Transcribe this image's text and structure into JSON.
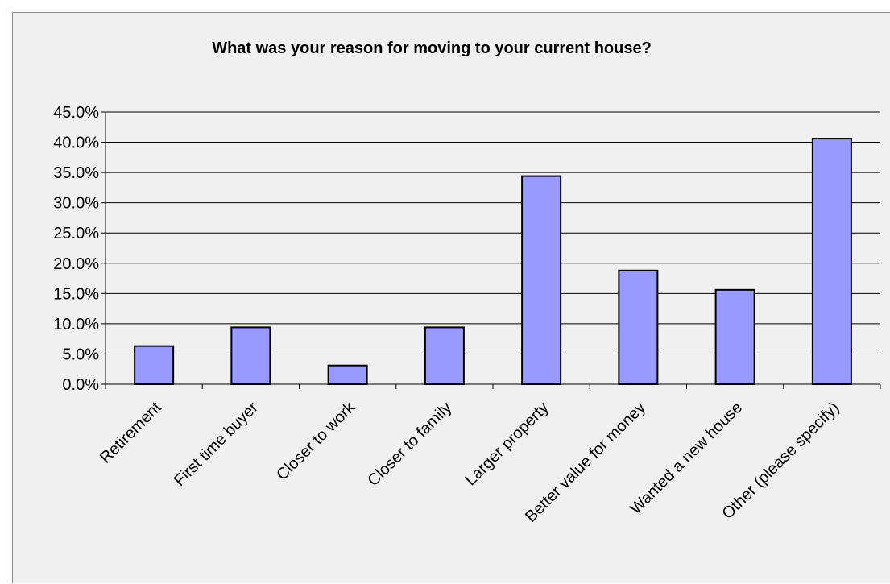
{
  "chart_data": {
    "type": "bar",
    "title": "What was your reason for moving to your current house?",
    "xlabel": "",
    "ylabel": "",
    "categories": [
      "Retirement",
      "First time buyer",
      "Closer to work",
      "Closer to family",
      "Larger property",
      "Better value for money",
      "Wanted a new house",
      "Other (please specify)"
    ],
    "values": [
      6.3,
      9.4,
      3.1,
      9.4,
      34.4,
      18.8,
      15.6,
      40.6
    ],
    "ylim": [
      0,
      45
    ],
    "yticks": [
      "0.0%",
      "5.0%",
      "10.0%",
      "15.0%",
      "20.0%",
      "25.0%",
      "30.0%",
      "35.0%",
      "40.0%",
      "45.0%"
    ],
    "grid": true,
    "legend": "none",
    "colors": {
      "bar_fill": "#9999ff",
      "bar_stroke": "#000000",
      "grid": "#000000",
      "background": "#f0f0f0"
    }
  }
}
